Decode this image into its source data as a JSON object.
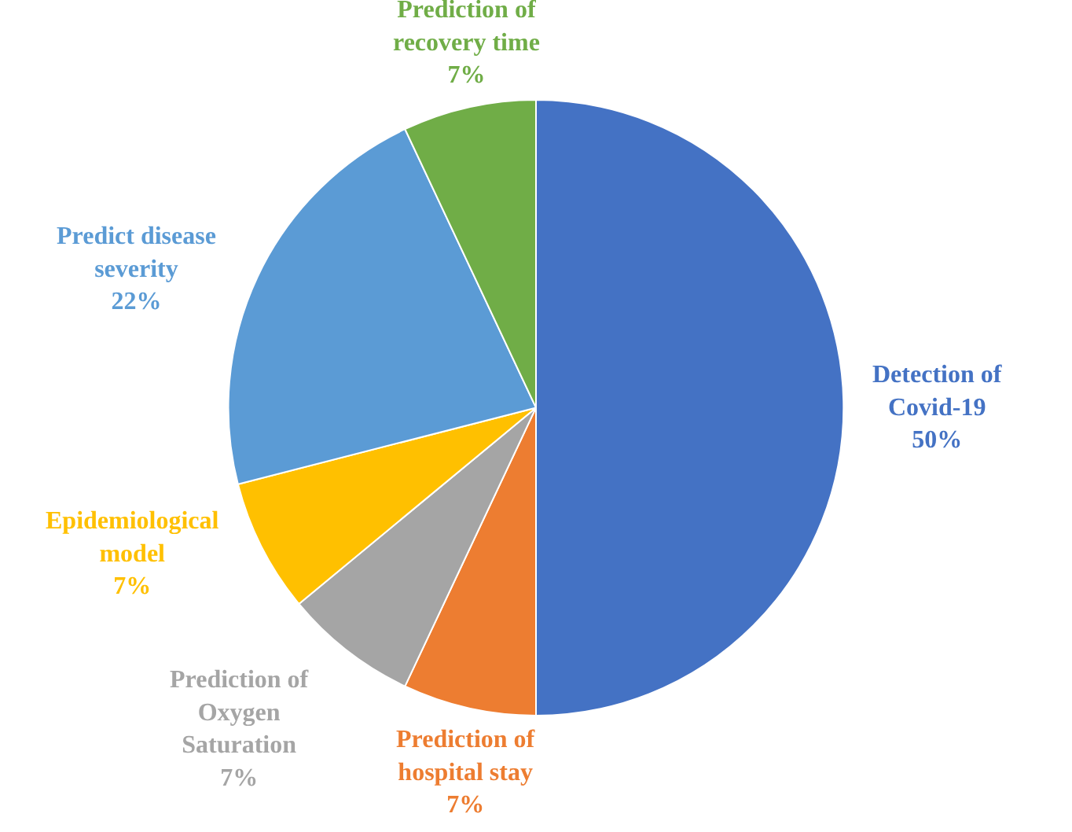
{
  "chart_data": {
    "type": "pie",
    "categories": [
      "Detection of Covid-19",
      "Prediction of hospital stay",
      "Prediction of Oxygen Saturation",
      "Epidemiological model",
      "Predict disease severity",
      "Prediction of recovery time"
    ],
    "values": [
      50,
      7,
      7,
      7,
      22,
      7
    ],
    "value_labels": [
      "50%",
      "7%",
      "7%",
      "7%",
      "22%",
      "7%"
    ],
    "colors": [
      "#4472c4",
      "#ed7d31",
      "#a5a5a5",
      "#ffc000",
      "#5b9bd5",
      "#70ad47"
    ],
    "legend": false
  }
}
